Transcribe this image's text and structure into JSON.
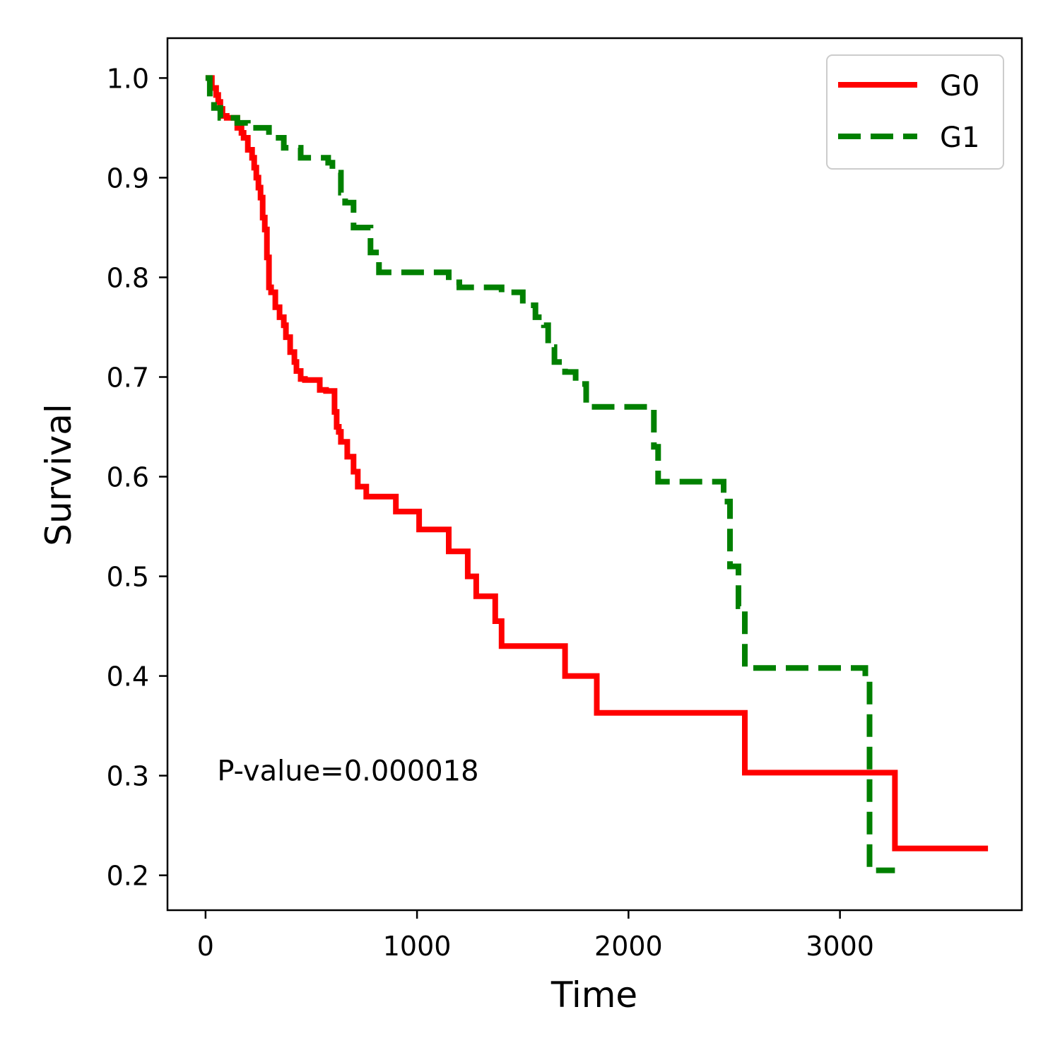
{
  "chart_data": {
    "type": "line",
    "xlabel": "Time",
    "ylabel": "Survival",
    "xlim": [
      -180,
      3860
    ],
    "ylim": [
      0.165,
      1.04
    ],
    "xticks": [
      0,
      1000,
      2000,
      3000
    ],
    "yticks": [
      0.2,
      0.3,
      0.4,
      0.5,
      0.6,
      0.7,
      0.8,
      0.9,
      1.0
    ],
    "xtick_labels": [
      "0",
      "1000",
      "2000",
      "3000"
    ],
    "ytick_labels": [
      "0.2",
      "0.3",
      "0.4",
      "0.5",
      "0.6",
      "0.7",
      "0.8",
      "0.9",
      "1.0"
    ],
    "grid": false,
    "legend": {
      "placement": "top-right"
    },
    "annotation": {
      "text": "P-value=0.000018",
      "x": 55,
      "y": 0.305
    },
    "series": [
      {
        "name": "G0",
        "color": "#ff0000",
        "style": "solid",
        "x": [
          0,
          30,
          50,
          60,
          70,
          80,
          100,
          150,
          170,
          180,
          200,
          220,
          230,
          240,
          250,
          260,
          270,
          280,
          290,
          300,
          310,
          330,
          350,
          370,
          380,
          400,
          420,
          430,
          450,
          470,
          540,
          570,
          610,
          620,
          630,
          640,
          670,
          700,
          720,
          760,
          900,
          1010,
          1150,
          1240,
          1280,
          1370,
          1400,
          1700,
          1850,
          2550,
          3260,
          3700
        ],
        "y": [
          1.0,
          0.99,
          0.983,
          0.976,
          0.969,
          0.962,
          0.96,
          0.95,
          0.945,
          0.94,
          0.928,
          0.92,
          0.91,
          0.9,
          0.89,
          0.88,
          0.86,
          0.848,
          0.82,
          0.79,
          0.785,
          0.77,
          0.76,
          0.752,
          0.74,
          0.725,
          0.715,
          0.706,
          0.698,
          0.697,
          0.687,
          0.686,
          0.665,
          0.65,
          0.645,
          0.635,
          0.62,
          0.605,
          0.59,
          0.58,
          0.565,
          0.547,
          0.525,
          0.5,
          0.48,
          0.455,
          0.43,
          0.4,
          0.363,
          0.303,
          0.227,
          0.227
        ]
      },
      {
        "name": "G1",
        "color": "#008000",
        "style": "dashed",
        "x": [
          0,
          20,
          40,
          70,
          150,
          200,
          220,
          300,
          370,
          450,
          580,
          600,
          640,
          660,
          700,
          780,
          820,
          1150,
          1200,
          1400,
          1500,
          1560,
          1600,
          1620,
          1650,
          1700,
          1750,
          1800,
          2120,
          2140,
          2450,
          2480,
          2520,
          2550,
          3120,
          3140,
          3260
        ],
        "y": [
          1.0,
          0.98,
          0.97,
          0.96,
          0.955,
          0.952,
          0.95,
          0.94,
          0.93,
          0.92,
          0.915,
          0.905,
          0.885,
          0.875,
          0.85,
          0.825,
          0.805,
          0.795,
          0.79,
          0.785,
          0.772,
          0.76,
          0.752,
          0.73,
          0.715,
          0.705,
          0.693,
          0.67,
          0.63,
          0.595,
          0.575,
          0.51,
          0.47,
          0.408,
          0.398,
          0.205,
          0.205
        ]
      }
    ]
  }
}
